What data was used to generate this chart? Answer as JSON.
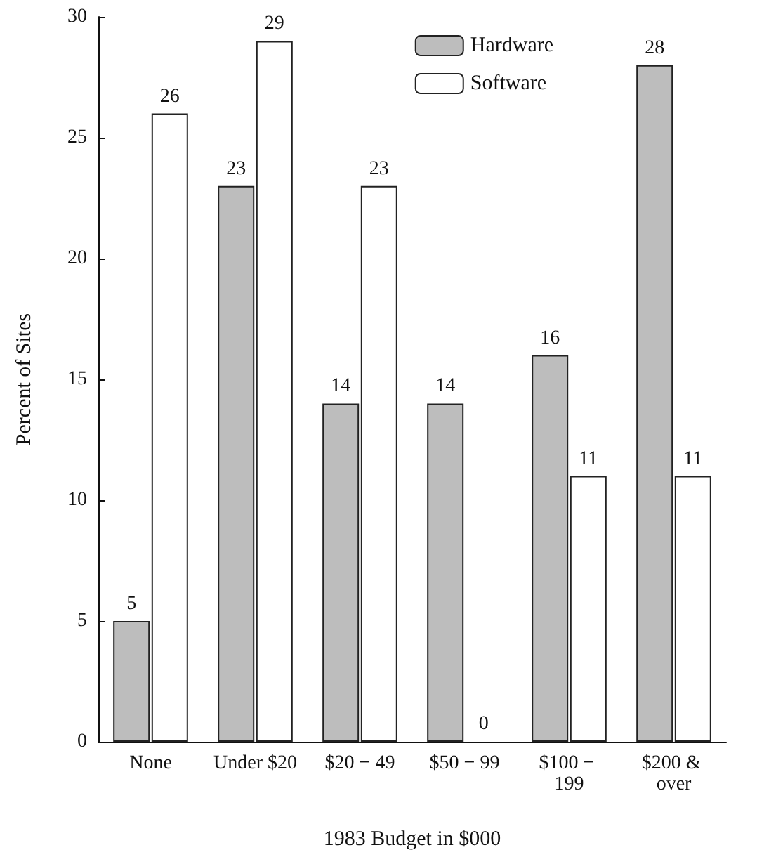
{
  "chart_data": {
    "type": "bar",
    "xlabel": "1983 Budget in $000",
    "ylabel": "Percent of Sites",
    "categories": [
      "None",
      "Under $20",
      "$20 − 49",
      "$50 − 99",
      "$100 − 199",
      "$200 & over"
    ],
    "series": [
      {
        "name": "Hardware",
        "color": "#bdbdbd",
        "values": [
          5,
          23,
          14,
          14,
          16,
          28
        ]
      },
      {
        "name": "Software",
        "color": "#ffffff",
        "values": [
          26,
          29,
          23,
          0,
          11,
          11
        ]
      }
    ],
    "ylim": [
      0,
      30
    ],
    "yticks": [
      0,
      5,
      10,
      15,
      20,
      25,
      30
    ],
    "data_labels": true,
    "legend": "top right",
    "grid": false
  }
}
